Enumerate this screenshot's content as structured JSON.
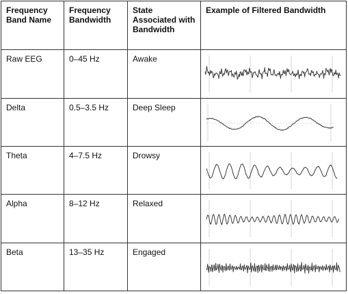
{
  "headers": {
    "band_name": "Frequency Band Name",
    "bandwidth": "Frequency Bandwidth",
    "state": "State Associated with Bandwidth",
    "example": "Example of Filtered Bandwidth"
  },
  "rows": [
    {
      "name": "Raw EEG",
      "bandwidth": "0–45 Hz",
      "state": "Awake",
      "wave_icon": "raw-eeg-waveform"
    },
    {
      "name": "Delta",
      "bandwidth": "0.5–3.5 Hz",
      "state": "Deep Sleep",
      "wave_icon": "delta-waveform"
    },
    {
      "name": "Theta",
      "bandwidth": "4–7.5 Hz",
      "state": "Drowsy",
      "wave_icon": "theta-waveform"
    },
    {
      "name": "Alpha",
      "bandwidth": "8–12 Hz",
      "state": "Relaxed",
      "wave_icon": "alpha-waveform"
    },
    {
      "name": "Beta",
      "bandwidth": "13–35 Hz",
      "state": "Engaged",
      "wave_icon": "beta-waveform"
    }
  ]
}
